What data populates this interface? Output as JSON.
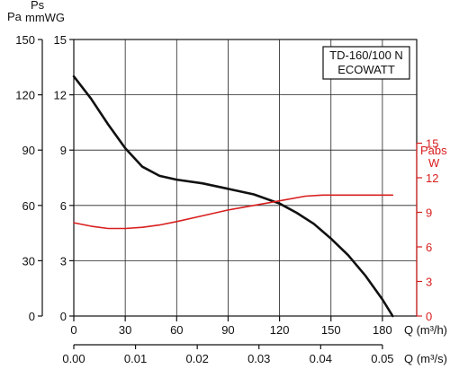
{
  "chart_data": {
    "type": "line",
    "box_lines": [
      "TD-160/100 N",
      "ECOWATT"
    ],
    "axes": {
      "left_pa": {
        "label": "Pa",
        "ticks": [
          "0",
          "30",
          "60",
          "90",
          "120",
          "150"
        ],
        "range": [
          0,
          150
        ]
      },
      "left_mmwg": {
        "label": "Ps\nmmWG",
        "label_lines": [
          "Ps",
          "mmWG"
        ],
        "ticks": [
          "0",
          "3",
          "6",
          "9",
          "12",
          "15"
        ],
        "range": [
          0,
          15
        ]
      },
      "right_w": {
        "label_lines": [
          "Pabs",
          "W"
        ],
        "ticks": [
          "0",
          "3",
          "6",
          "9",
          "12",
          "15"
        ],
        "range": [
          0,
          24
        ],
        "color": "#d81e1e"
      },
      "x_m3h": {
        "label": "Q (m³/h)",
        "ticks": [
          "0",
          "30",
          "60",
          "90",
          "120",
          "150",
          "180"
        ],
        "range": [
          0,
          200
        ]
      },
      "x_m3s": {
        "label": "Q (m³/s)",
        "ticks": [
          "0.00",
          "0.01",
          "0.02",
          "0.03",
          "0.04",
          "0.05"
        ]
      }
    },
    "grid": true,
    "series": [
      {
        "axis": "pressure",
        "color": "#111111",
        "x": [
          0,
          10,
          20,
          30,
          40,
          50,
          60,
          75,
          90,
          105,
          120,
          130,
          140,
          150,
          160,
          170,
          180,
          186
        ],
        "y": [
          130,
          118,
          104,
          91,
          81,
          76,
          74,
          72,
          69,
          66,
          61,
          56,
          50,
          42,
          33,
          22,
          9,
          0
        ]
      },
      {
        "axis": "power",
        "color": "#d81e1e",
        "x": [
          0,
          10,
          20,
          30,
          40,
          50,
          60,
          75,
          90,
          105,
          120,
          135,
          145,
          155,
          170,
          186
        ],
        "y": [
          8.1,
          7.8,
          7.6,
          7.6,
          7.7,
          7.9,
          8.2,
          8.7,
          9.2,
          9.6,
          10.0,
          10.4,
          10.5,
          10.5,
          10.5,
          10.5
        ]
      }
    ]
  }
}
